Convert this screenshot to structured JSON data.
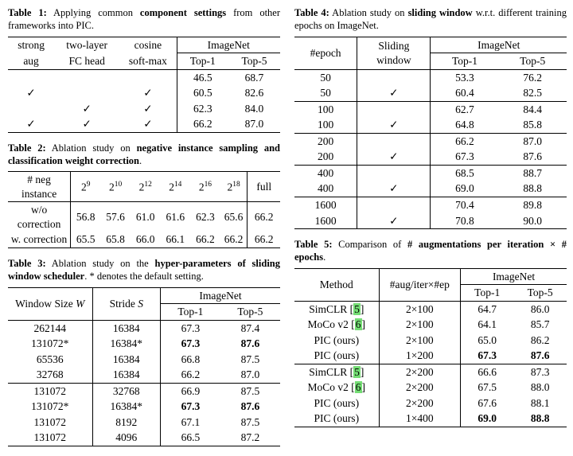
{
  "page": {
    "background": "#ffffff",
    "text_color": "#000000",
    "citation_bg": "#74dd74"
  },
  "table1": {
    "caption": [
      {
        "text": "Table 1:"
      },
      {
        "text": " Applying common "
      },
      {
        "text": "component settings"
      },
      {
        "text": " from other frameworks into PIC."
      }
    ],
    "header": {
      "col1_l1": "strong",
      "col1_l2": "aug",
      "col2_l1": "two-layer",
      "col2_l2": "FC head",
      "col3_l1": "cosine",
      "col3_l2": "soft-max",
      "imagenet": "ImageNet",
      "top1": "Top-1",
      "top5": "Top-5"
    },
    "rows": [
      [
        "",
        "",
        "",
        "46.5",
        "68.7"
      ],
      [
        "✓",
        "",
        "✓",
        "60.5",
        "82.6"
      ],
      [
        "",
        "✓",
        "✓",
        "62.3",
        "84.0"
      ],
      [
        "✓",
        "✓",
        "✓",
        "66.2",
        "87.0"
      ]
    ]
  },
  "table2": {
    "caption": [
      {
        "text": "Table 2:"
      },
      {
        "text": " Ablation study on "
      },
      {
        "text": "negative instance sampling and classification weight correction"
      },
      {
        "text": "."
      }
    ],
    "header": {
      "label": "# neg instance",
      "base": "2",
      "exps": [
        "9",
        "10",
        "12",
        "14",
        "16",
        "18"
      ],
      "full": "full"
    },
    "rows": [
      [
        "w/o correction",
        "56.8",
        "57.6",
        "61.0",
        "61.6",
        "62.3",
        "65.6",
        "66.2"
      ],
      [
        "w. correction",
        "65.5",
        "65.8",
        "66.0",
        "66.1",
        "66.2",
        "66.2",
        "66.2"
      ]
    ]
  },
  "table3": {
    "caption": [
      {
        "text": "Table 3:"
      },
      {
        "text": " Ablation study on the "
      },
      {
        "text": "hyper-parameters of sliding window scheduler"
      },
      {
        "text": ". * denotes the default setting."
      }
    ],
    "header": {
      "col1_text": "Window Size ",
      "col1_var": "W",
      "col2_text": "Stride ",
      "col2_var": "S",
      "imagenet": "ImageNet",
      "top1": "Top-1",
      "top5": "Top-5"
    },
    "rows": [
      [
        "262144",
        "16384",
        "67.3",
        "87.4"
      ],
      [
        "131072*",
        "16384*",
        {
          "t": "67.3",
          "b": true
        },
        {
          "t": "87.6",
          "b": true
        }
      ],
      [
        "65536",
        "16384",
        "66.8",
        "87.5"
      ],
      [
        "32768",
        "16384",
        "66.2",
        "87.0"
      ],
      [
        "131072",
        "32768",
        "66.9",
        "87.5"
      ],
      [
        "131072*",
        "16384*",
        {
          "t": "67.3",
          "b": true
        },
        {
          "t": "87.6",
          "b": true
        }
      ],
      [
        "131072",
        "8192",
        "67.1",
        "87.5"
      ],
      [
        "131072",
        "4096",
        "66.5",
        "87.2"
      ]
    ]
  },
  "table4": {
    "caption": [
      {
        "text": "Table 4:"
      },
      {
        "text": " Ablation study on "
      },
      {
        "text": "sliding window"
      },
      {
        "text": " w.r.t. different training epochs on ImageNet."
      }
    ],
    "header": {
      "col1": "#epoch",
      "col2_l1": "Sliding",
      "col2_l2": "window",
      "imagenet": "ImageNet",
      "top1": "Top-1",
      "top5": "Top-5"
    },
    "rows": [
      [
        "50",
        "",
        "53.3",
        "76.2"
      ],
      [
        "50",
        "✓",
        "60.4",
        "82.5"
      ],
      [
        "100",
        "",
        "62.7",
        "84.4"
      ],
      [
        "100",
        "✓",
        "64.8",
        "85.8"
      ],
      [
        "200",
        "",
        "66.2",
        "87.0"
      ],
      [
        "200",
        "✓",
        "67.3",
        "87.6"
      ],
      [
        "400",
        "",
        "68.5",
        "88.7"
      ],
      [
        "400",
        "✓",
        "69.0",
        "88.8"
      ],
      [
        "1600",
        "",
        "70.4",
        "89.8"
      ],
      [
        "1600",
        "✓",
        "70.8",
        "90.0"
      ]
    ]
  },
  "table5": {
    "caption": [
      {
        "text": "Table 5:"
      },
      {
        "text": " Comparison of "
      },
      {
        "text": "# augmentations per iteration × # epochs"
      },
      {
        "text": "."
      }
    ],
    "header": {
      "col1": "Method",
      "col2": "#aug/iter×#ep",
      "imagenet": "ImageNet",
      "top1": "Top-1",
      "top5": "Top-5"
    },
    "rows": [
      [
        {
          "pre": "SimCLR [",
          "cite": "5",
          "post": "]"
        },
        "2×100",
        "64.7",
        "86.0"
      ],
      [
        {
          "pre": "MoCo v2 [",
          "cite": "6",
          "post": "]"
        },
        "2×100",
        "64.1",
        "85.7"
      ],
      [
        "PIC (ours)",
        "2×100",
        "65.0",
        "86.2"
      ],
      [
        "PIC (ours)",
        "1×200",
        {
          "t": "67.3",
          "b": true
        },
        {
          "t": "87.6",
          "b": true
        }
      ],
      [
        {
          "pre": "SimCLR [",
          "cite": "5",
          "post": "]"
        },
        "2×200",
        "66.6",
        "87.3"
      ],
      [
        {
          "pre": "MoCo v2 [",
          "cite": "6",
          "post": "]"
        },
        "2×200",
        "67.5",
        "88.0"
      ],
      [
        "PIC (ours)",
        "2×200",
        "67.6",
        "88.1"
      ],
      [
        "PIC (ours)",
        "1×400",
        {
          "t": "69.0",
          "b": true
        },
        {
          "t": "88.8",
          "b": true
        }
      ]
    ]
  }
}
